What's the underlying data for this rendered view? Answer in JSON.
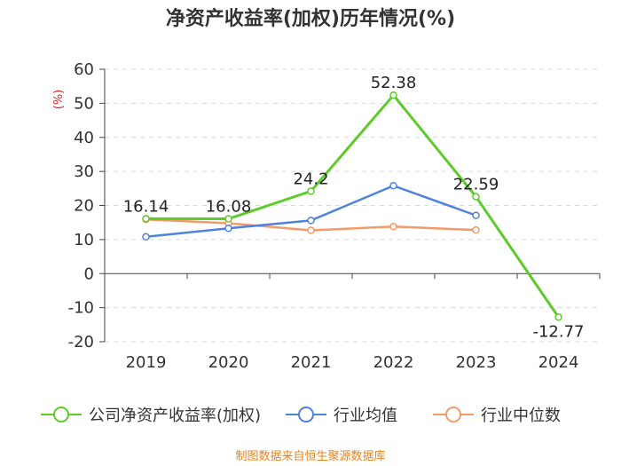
{
  "chart_data": {
    "type": "line",
    "title": "净资产收益率(加权)历年情况(%)",
    "ylabel": "(%)",
    "xlabel": "",
    "categories": [
      "2019",
      "2020",
      "2021",
      "2022",
      "2023",
      "2024"
    ],
    "ylim": [
      -20,
      60
    ],
    "yticks": [
      60,
      50,
      40,
      30,
      20,
      10,
      0,
      -10,
      -20
    ],
    "grid": true,
    "legend_position": "bottom",
    "series": [
      {
        "name": "公司净资产收益率(加权)",
        "color": "#5fcb2a",
        "values": [
          16.14,
          16.08,
          24.2,
          52.38,
          22.59,
          -12.77
        ],
        "labels": [
          "16.14",
          "16.08",
          "24.2",
          "52.38",
          "22.59",
          "-12.77"
        ]
      },
      {
        "name": "行业均值",
        "color": "#4f82dc",
        "values": [
          10.8,
          13.3,
          15.6,
          25.8,
          17.1,
          null
        ],
        "labels": []
      },
      {
        "name": "行业中位数",
        "color": "#f49a68",
        "values": [
          15.9,
          14.8,
          12.7,
          13.8,
          12.8,
          null
        ],
        "labels": []
      }
    ],
    "source": "制图数据来自恒生聚源数据库"
  }
}
